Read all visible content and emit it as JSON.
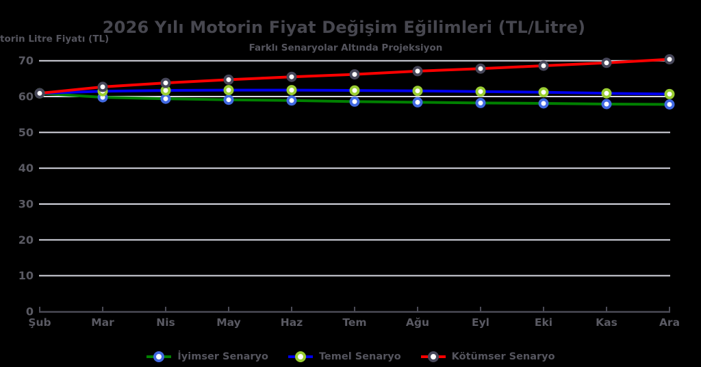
{
  "chart_data": {
    "type": "line",
    "title": "2026 Yılı Motorin Fiyat Değişim Eğilimleri (TL/Litre)",
    "subtitle": "Farklı Senaryolar Altında Projeksiyon",
    "y_axis_label_visible": "torin Litre Fiyatı (TL)",
    "categories": [
      "Şub",
      "Mar",
      "Nis",
      "May",
      "Haz",
      "Tem",
      "Ağu",
      "Eyl",
      "Eki",
      "Kas",
      "Ara"
    ],
    "yticks": [
      0,
      10,
      20,
      30,
      40,
      50,
      60,
      70
    ],
    "ylim": [
      0,
      70
    ],
    "grid": true,
    "legend_position": "bottom-center",
    "series": [
      {
        "name": "İyimser Senaryo",
        "line_color": "#008000",
        "marker_edge_color": "#4169e1",
        "marker_face_color": "#ffffff",
        "values": [
          60.9,
          59.8,
          59.4,
          59.1,
          58.9,
          58.6,
          58.4,
          58.2,
          58.1,
          57.9,
          57.8
        ]
      },
      {
        "name": "Temel Senaryo",
        "line_color": "#0000ee",
        "marker_edge_color": "#9acd32",
        "marker_face_color": "#ffffff",
        "values": [
          60.9,
          61.5,
          61.7,
          61.8,
          61.8,
          61.7,
          61.6,
          61.4,
          61.2,
          60.9,
          60.7
        ]
      },
      {
        "name": "Kötümser Senaryo",
        "line_color": "#ff0000",
        "marker_edge_color": "#47475a",
        "marker_face_color": "#ffffff",
        "values": [
          60.9,
          62.7,
          63.8,
          64.7,
          65.5,
          66.2,
          67.1,
          67.8,
          68.6,
          69.4,
          70.4
        ]
      }
    ],
    "colors": {
      "background": "#000000",
      "gridline": "#d9dae4",
      "axis_line": "#4a4a55",
      "title_text": "#47474f",
      "subtitle_text": "#55555e",
      "tick_text": "#5a5a63",
      "legend_text": "#55555e"
    }
  }
}
